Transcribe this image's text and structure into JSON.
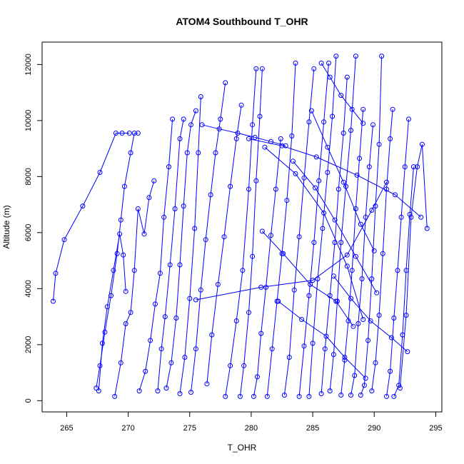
{
  "chart_data": {
    "type": "line",
    "title": "ATOM4 Southbound T_OHR",
    "xlabel": "T_OHR",
    "ylabel": "Altitude (m)",
    "xlim": [
      263,
      295.5
    ],
    "ylim": [
      -400,
      12800
    ],
    "xticks": [
      265,
      270,
      275,
      280,
      285,
      290,
      295
    ],
    "yticks": [
      0,
      2000,
      4000,
      6000,
      8000,
      10000,
      12000
    ],
    "grid": false,
    "legend": "none",
    "marker": "open-circle",
    "series_color": "#0000ff",
    "series": [
      {
        "x": [
          263.9,
          264.1,
          264.8,
          266.3,
          267.7,
          269.0,
          269.5,
          270.1
        ],
        "y": [
          3550,
          4550,
          5750,
          6950,
          8150,
          9550,
          9550,
          9550
        ]
      },
      {
        "x": [
          267.4,
          267.7,
          268.1,
          268.6,
          269.1,
          269.4,
          269.7,
          270.2,
          270.5,
          270.8
        ],
        "y": [
          450,
          1250,
          2450,
          3750,
          5250,
          6450,
          7650,
          8850,
          9550,
          9550
        ]
      },
      {
        "x": [
          267.6,
          267.9,
          268.3,
          268.8,
          269.3,
          269.6,
          269.8
        ],
        "y": [
          350,
          2050,
          3350,
          4650,
          5950,
          5200,
          3900
        ]
      },
      {
        "x": [
          268.9,
          269.4,
          269.8,
          270.2,
          270.5,
          270.8,
          271.3,
          271.7,
          272.1
        ],
        "y": [
          150,
          1350,
          2750,
          3150,
          4650,
          6850,
          5950,
          7250,
          7850
        ]
      },
      {
        "x": [
          270.9,
          271.4,
          271.8,
          272.2,
          272.6,
          272.9,
          273.3,
          273.6
        ],
        "y": [
          350,
          1050,
          2150,
          3450,
          4550,
          6550,
          8350,
          10050
        ]
      },
      {
        "x": [
          272.4,
          272.7,
          273.0,
          273.4,
          273.8,
          274.2,
          274.5
        ],
        "y": [
          350,
          1850,
          3000,
          4850,
          6850,
          9350,
          10050
        ]
      },
      {
        "x": [
          273.1,
          273.5,
          273.9,
          274.2,
          274.5,
          274.8,
          275.1,
          275.5
        ],
        "y": [
          450,
          1350,
          2950,
          4850,
          6950,
          8850,
          9850,
          10350
        ]
      },
      {
        "x": [
          274.2,
          274.6,
          275.0,
          275.4,
          275.7,
          275.9
        ],
        "y": [
          250,
          1550,
          3650,
          6150,
          8850,
          10850
        ]
      },
      {
        "x": [
          275.1,
          275.5,
          275.9,
          276.3,
          276.7,
          277.1,
          277.5,
          277.9
        ],
        "y": [
          300,
          1850,
          3950,
          5750,
          7350,
          8850,
          10050,
          11350
        ]
      },
      {
        "x": [
          276.4,
          276.8,
          277.3,
          277.8,
          278.3,
          278.8,
          279.2
        ],
        "y": [
          600,
          2350,
          4150,
          5850,
          7650,
          9350,
          10550
        ]
      },
      {
        "x": [
          277.9,
          278.3,
          278.8,
          279.3,
          279.8,
          280.1,
          280.4
        ],
        "y": [
          150,
          1250,
          2850,
          4650,
          7550,
          9850,
          11850
        ]
      },
      {
        "x": [
          279.1,
          279.4,
          279.8,
          280.1,
          280.4,
          280.7,
          280.9
        ],
        "y": [
          150,
          1250,
          3150,
          5150,
          7850,
          10150,
          11850
        ]
      },
      {
        "x": [
          280.2,
          280.5,
          280.8,
          281.2,
          281.6,
          282.0,
          282.4
        ],
        "y": [
          150,
          850,
          2400,
          4050,
          5900,
          7550,
          9350
        ]
      },
      {
        "x": [
          281.3,
          281.7,
          282.1,
          282.5,
          282.9,
          283.3,
          283.6
        ],
        "y": [
          150,
          1850,
          3550,
          5250,
          7150,
          9450,
          12050
        ]
      },
      {
        "x": [
          282.7,
          283.1,
          283.5,
          283.9,
          284.3,
          284.7,
          285.1
        ],
        "y": [
          200,
          1550,
          3950,
          5850,
          7950,
          9950,
          11850
        ]
      },
      {
        "x": [
          283.9,
          284.3,
          284.7,
          285.1,
          285.5,
          285.9,
          286.3
        ],
        "y": [
          150,
          1950,
          3750,
          5650,
          7850,
          9950,
          12050
        ]
      },
      {
        "x": [
          284.7,
          285.0,
          285.4,
          285.8,
          286.2,
          286.6,
          286.9
        ],
        "y": [
          150,
          2050,
          4350,
          6150,
          8150,
          10150,
          12300
        ]
      },
      {
        "x": [
          285.7,
          286.0,
          286.4,
          286.8,
          287.1,
          287.5,
          287.8
        ],
        "y": [
          250,
          1850,
          3750,
          5650,
          7550,
          9550,
          11550
        ]
      },
      {
        "x": [
          286.4,
          286.7,
          287.0,
          287.3,
          287.7,
          288.1,
          288.5
        ],
        "y": [
          350,
          1650,
          3550,
          5650,
          7650,
          9650,
          12300
        ]
      },
      {
        "x": [
          287.3,
          287.6,
          287.9,
          288.2,
          288.5,
          288.8,
          289.1
        ],
        "y": [
          200,
          1450,
          2850,
          4650,
          6850,
          8650,
          10400
        ]
      },
      {
        "x": [
          288.1,
          288.4,
          288.7,
          289.0,
          289.3,
          289.6,
          289.9
        ],
        "y": [
          200,
          900,
          2750,
          4350,
          6550,
          8350,
          9850
        ]
      },
      {
        "x": [
          288.9,
          289.2,
          289.5,
          289.8,
          290.1,
          290.4,
          290.6
        ],
        "y": [
          200,
          550,
          2150,
          4350,
          6950,
          9150,
          12300
        ]
      },
      {
        "x": [
          289.8,
          290.1,
          290.4,
          290.7,
          291.0,
          291.3,
          291.5
        ],
        "y": [
          350,
          1350,
          3050,
          5250,
          7550,
          9350,
          10400
        ]
      },
      {
        "x": [
          291.0,
          291.3,
          291.6,
          291.9,
          292.2,
          292.5,
          292.8
        ],
        "y": [
          150,
          1050,
          2950,
          4650,
          6550,
          8350,
          10050
        ]
      },
      {
        "x": [
          291.6,
          292.0,
          292.3,
          292.6,
          292.9,
          293.2
        ],
        "y": [
          150,
          550,
          2350,
          4650,
          6650,
          8350
        ]
      },
      {
        "x": [
          292.1,
          292.6,
          293.0,
          293.5,
          293.9,
          294.3
        ],
        "y": [
          450,
          3050,
          6550,
          8350,
          9150,
          6150
        ]
      },
      {
        "x": [
          275.5,
          280.8,
          285.0,
          287.8,
          289.8,
          291.0
        ],
        "y": [
          3600,
          4050,
          4300,
          5200,
          6800,
          7800
        ]
      },
      {
        "x": [
          279.8,
          282.5,
          285.3,
          288.6,
          291.7,
          293.8
        ],
        "y": [
          9350,
          9100,
          8700,
          8050,
          7350,
          6550
        ]
      },
      {
        "x": [
          281.1,
          283.6,
          285.9,
          287.8,
          289.1
        ],
        "y": [
          9050,
          8100,
          6700,
          4800,
          2900
        ]
      },
      {
        "x": [
          282.2,
          284.1,
          286.1,
          287.6,
          289.3
        ],
        "y": [
          3550,
          2900,
          2300,
          1550,
          800
        ]
      },
      {
        "x": [
          286.7,
          288.1,
          289.7,
          291.4,
          292.7
        ],
        "y": [
          4450,
          3650,
          2850,
          2250,
          1750
        ]
      },
      {
        "x": [
          280.9,
          282.6,
          284.8,
          286.9,
          288.3
        ],
        "y": [
          6050,
          5250,
          4150,
          3550,
          2650
        ]
      },
      {
        "x": [
          283.4,
          285.2,
          286.8,
          288.5,
          290.2
        ],
        "y": [
          8550,
          7600,
          6450,
          5150,
          3850
        ]
      },
      {
        "x": [
          284.9,
          286.2,
          287.5,
          288.9,
          290.0
        ],
        "y": [
          10350,
          9050,
          7800,
          6300,
          5350
        ]
      },
      {
        "x": [
          276.0,
          277.4,
          278.9,
          280.3,
          281.6,
          282.8
        ],
        "y": [
          9850,
          9700,
          9550,
          9400,
          9250,
          9100
        ]
      },
      {
        "x": [
          285.7,
          286.4,
          287.3,
          288.2,
          289.1
        ],
        "y": [
          12050,
          11550,
          10900,
          10400,
          9900
        ]
      }
    ]
  }
}
